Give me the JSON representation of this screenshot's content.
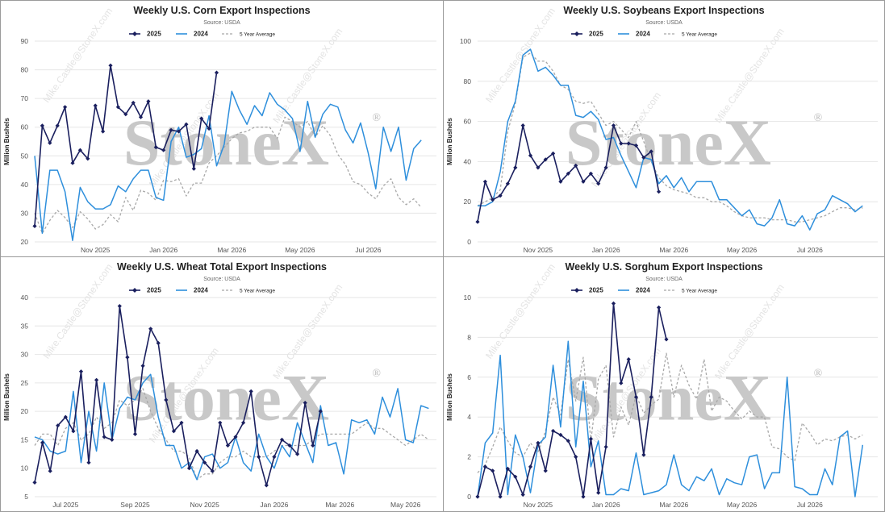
{
  "watermark": {
    "brand": "StoneX",
    "registered": "®",
    "diagonal": "Mike.Castle@StoneX.com"
  },
  "colors": {
    "y2025": "#1a1f5e",
    "y2024": "#2e8fdc",
    "avg": "#a8a8a8",
    "grid": "#e6e6e6"
  },
  "chart_data": [
    {
      "id": "corn",
      "type": "line",
      "title": "Weekly U.S. Corn Export Inspections",
      "subtitle": "Source: USDA",
      "ylabel": "Million Bushels",
      "xlabel": "",
      "ylim": [
        20,
        90
      ],
      "yticks": [
        20,
        30,
        40,
        50,
        60,
        70,
        80,
        90
      ],
      "xrange": [
        0,
        53
      ],
      "xticks": [
        {
          "pos": 8,
          "label": "Nov 2025"
        },
        {
          "pos": 17,
          "label": "Jan 2026"
        },
        {
          "pos": 26,
          "label": "Mar 2026"
        },
        {
          "pos": 35,
          "label": "May 2026"
        },
        {
          "pos": 44,
          "label": "Jul 2026"
        }
      ],
      "series": [
        {
          "name": "2025",
          "style": "marker",
          "values": [
            25.5,
            60.5,
            54.5,
            60.5,
            67,
            47.5,
            52,
            49,
            67.5,
            58.5,
            81.5,
            67,
            64.5,
            68.5,
            63.5,
            69,
            53,
            52,
            59,
            58.5,
            61,
            45.5,
            63,
            59.5,
            79
          ]
        },
        {
          "name": "2024",
          "style": "solid",
          "values": [
            50,
            23,
            45,
            45,
            37.5,
            20.5,
            39,
            34,
            31.5,
            31.5,
            33,
            39.5,
            37.5,
            42,
            45,
            45,
            35.5,
            34.5,
            55,
            60,
            49.5,
            50.5,
            52.5,
            64,
            46.5,
            54,
            72.5,
            66,
            61,
            67.5,
            64,
            72,
            68,
            66,
            63,
            51.5,
            69,
            56.5,
            64.5,
            68,
            67,
            59,
            54.5,
            61.5,
            51,
            38.5,
            60,
            51.5,
            60,
            41.5,
            52.5,
            55.5
          ]
        },
        {
          "name": "5 Year Average",
          "style": "dashed",
          "values": [
            30,
            23,
            27.5,
            31,
            28.5,
            25,
            30.5,
            28,
            24.5,
            26,
            29.5,
            27,
            35.5,
            31,
            38,
            37,
            34.5,
            41.5,
            41,
            42,
            36,
            40.5,
            40.5,
            47.5,
            50,
            53,
            56,
            58,
            58.5,
            60,
            60,
            60,
            56,
            63.5,
            62,
            60,
            62,
            56.5,
            60.5,
            57,
            50.5,
            47,
            41,
            40,
            37,
            35,
            39.5,
            42,
            35.5,
            33,
            35,
            32
          ]
        }
      ]
    },
    {
      "id": "soybeans",
      "type": "line",
      "title": "Weekly U.S. Soybeans Export Inspections",
      "subtitle": "Source: USDA",
      "ylabel": "Million Bushels",
      "xlabel": "",
      "ylim": [
        0,
        100
      ],
      "yticks": [
        0,
        20,
        40,
        60,
        80,
        100
      ],
      "xrange": [
        0,
        53
      ],
      "xticks": [
        {
          "pos": 8,
          "label": "Nov 2025"
        },
        {
          "pos": 17,
          "label": "Jan 2026"
        },
        {
          "pos": 26,
          "label": "Mar 2026"
        },
        {
          "pos": 35,
          "label": "May 2026"
        },
        {
          "pos": 44,
          "label": "Jul 2026"
        }
      ],
      "series": [
        {
          "name": "2025",
          "style": "marker",
          "values": [
            10,
            30,
            21,
            23,
            29,
            37,
            58,
            43,
            37,
            41,
            44,
            30,
            34,
            38,
            30,
            34,
            29,
            37,
            58,
            49,
            49,
            48,
            42,
            45,
            25
          ]
        },
        {
          "name": "2024",
          "style": "solid",
          "values": [
            18,
            18,
            20,
            35,
            60,
            70,
            93,
            96,
            85,
            87,
            83,
            78,
            78,
            63,
            62,
            65,
            61,
            51,
            52,
            43,
            35,
            27,
            42,
            41,
            29,
            33,
            27,
            32,
            25,
            30,
            30,
            30,
            21,
            21,
            17,
            13,
            16,
            9,
            8,
            12,
            21,
            9,
            8,
            13,
            6,
            14,
            16,
            23,
            21,
            19,
            15,
            18
          ]
        },
        {
          "name": "5 Year Average",
          "style": "dashed",
          "values": [
            18,
            20,
            22,
            26,
            55,
            69,
            92,
            94,
            90,
            90,
            85,
            78,
            76,
            70,
            69,
            70,
            64,
            58,
            60,
            56,
            52,
            60,
            50,
            40,
            32,
            28,
            26,
            25,
            24,
            22,
            22,
            20,
            20,
            18,
            15,
            13,
            12,
            12,
            12,
            11,
            11,
            11,
            10,
            10,
            11,
            12,
            13,
            15,
            17,
            17,
            16,
            17
          ]
        }
      ]
    },
    {
      "id": "wheat",
      "type": "line",
      "title": "Weekly U.S. Wheat Total Export Inspections",
      "subtitle": "Source: USDA",
      "ylabel": "Million Bushels",
      "xlabel": "",
      "ylim": [
        5,
        40
      ],
      "yticks": [
        5,
        10,
        15,
        20,
        25,
        30,
        35,
        40
      ],
      "xrange": [
        0,
        52
      ],
      "xticks": [
        {
          "pos": 4,
          "label": "Jul 2025"
        },
        {
          "pos": 13,
          "label": "Sep 2025"
        },
        {
          "pos": 22,
          "label": "Nov 2025"
        },
        {
          "pos": 31,
          "label": "Jan 2026"
        },
        {
          "pos": 39.5,
          "label": "Mar 2026"
        },
        {
          "pos": 48,
          "label": "May 2026"
        }
      ],
      "series": [
        {
          "name": "2025",
          "style": "marker",
          "values": [
            7.5,
            14.5,
            9.5,
            17.5,
            19,
            16.5,
            27,
            11,
            25.5,
            15.5,
            15,
            38.5,
            29.5,
            16,
            28,
            34.5,
            32,
            22,
            16.5,
            18,
            10,
            13,
            11,
            9.5,
            18,
            14,
            15.5,
            18,
            23.5,
            12,
            7,
            12,
            15,
            14,
            12.5,
            21.5,
            14,
            20
          ]
        },
        {
          "name": "2024",
          "style": "solid",
          "values": [
            15.5,
            15,
            13,
            12.5,
            13,
            23.5,
            11,
            20,
            13,
            25,
            15,
            20.5,
            22.5,
            22,
            25,
            26.5,
            19,
            14,
            14,
            10,
            11,
            8,
            12,
            12.5,
            10,
            11,
            15.5,
            11,
            9.5,
            16,
            12,
            10,
            14,
            12,
            18,
            14.5,
            11,
            21,
            14,
            14.5,
            9,
            18.5,
            18,
            18.5,
            16,
            22.5,
            19,
            24,
            15,
            14.5,
            21,
            20.5
          ]
        },
        {
          "name": "5 Year Average",
          "style": "dashed",
          "values": [
            14,
            16,
            16,
            14,
            17,
            18,
            15,
            16,
            19,
            17,
            18,
            22,
            21,
            22,
            24,
            20,
            17,
            15,
            13,
            13,
            12,
            8,
            9,
            9,
            11,
            12,
            12,
            13,
            12,
            12,
            12,
            13,
            14,
            14,
            14,
            14,
            15,
            16,
            16,
            16,
            16,
            16,
            17,
            18,
            17,
            17,
            16,
            15,
            14,
            15,
            16,
            15
          ]
        }
      ]
    },
    {
      "id": "sorghum",
      "type": "line",
      "title": "Weekly U.S. Sorghum Export Inspections",
      "subtitle": "Source: USDA",
      "ylabel": "Million Bushels",
      "xlabel": "",
      "ylim": [
        0,
        10
      ],
      "yticks": [
        0,
        2,
        4,
        6,
        8,
        10
      ],
      "xrange": [
        0,
        53
      ],
      "xticks": [
        {
          "pos": 8,
          "label": "Nov 2025"
        },
        {
          "pos": 17,
          "label": "Jan 2026"
        },
        {
          "pos": 26,
          "label": "Mar 2026"
        },
        {
          "pos": 35,
          "label": "May 2026"
        },
        {
          "pos": 44,
          "label": "Jul 2026"
        }
      ],
      "series": [
        {
          "name": "2025",
          "style": "marker",
          "values": [
            0,
            1.5,
            1.3,
            0,
            1.4,
            1.0,
            0.1,
            1.5,
            2.7,
            1.3,
            3.3,
            3.1,
            2.8,
            2.0,
            0,
            2.9,
            0.2,
            2.5,
            9.7,
            5.7,
            6.9,
            5.0,
            2.1,
            5.0,
            9.5,
            7.9
          ]
        },
        {
          "name": "2024",
          "style": "solid",
          "values": [
            0,
            2.7,
            3.2,
            7.1,
            0.1,
            3.1,
            2.0,
            0.2,
            2.6,
            3.0,
            6.6,
            3.5,
            7.8,
            2.5,
            5.8,
            1.5,
            2.8,
            0.1,
            0.1,
            0.4,
            0.3,
            2.2,
            0.1,
            0.2,
            0.3,
            0.6,
            2.1,
            0.6,
            0.3,
            1.0,
            0.8,
            1.4,
            0.1,
            0.9,
            0.7,
            0.6,
            2.0,
            2.1,
            0.4,
            1.2,
            1.2,
            6.0,
            0.5,
            0.4,
            0.1,
            0.1,
            1.4,
            0.6,
            3.0,
            3.3,
            0,
            2.6
          ]
        },
        {
          "name": "5 Year Average",
          "style": "dashed",
          "values": [
            1.2,
            1.6,
            2.5,
            3.5,
            2.8,
            2.2,
            2.0,
            2.7,
            2.2,
            3.3,
            5.0,
            4.1,
            6.9,
            4.8,
            7.0,
            2.8,
            5.9,
            6.6,
            3.0,
            4.5,
            3.6,
            5.1,
            4.2,
            4.6,
            4.9,
            7.2,
            5.0,
            6.6,
            5.6,
            4.9,
            6.9,
            4.3,
            5.0,
            4.8,
            4.3,
            3.9,
            4.3,
            4.0,
            4.0,
            2.5,
            2.4,
            2.0,
            1.8,
            3.7,
            3.2,
            2.6,
            2.9,
            2.8,
            3.0,
            3.1,
            2.9,
            3.1
          ]
        }
      ]
    }
  ]
}
